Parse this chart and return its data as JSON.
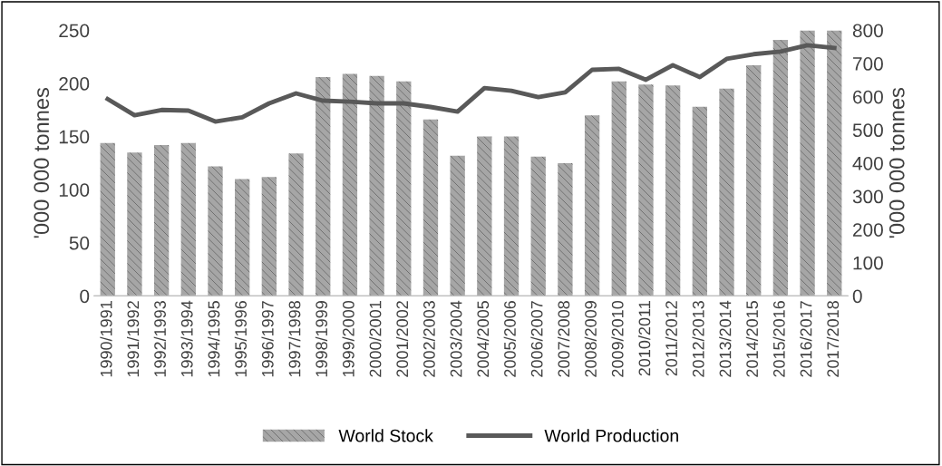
{
  "chart_data": {
    "type": "bar",
    "categories": [
      "1990/1991",
      "1991/1992",
      "1992/1993",
      "1993/1994",
      "1994/1995",
      "1995/1996",
      "1996/1997",
      "1997/1998",
      "1998/1999",
      "1999/2000",
      "2000/2001",
      "2001/2002",
      "2002/2003",
      "2003/2004",
      "2004/2005",
      "2005/2006",
      "2006/2007",
      "2007/2008",
      "2008/2009",
      "2009/2010",
      "2010/2011",
      "2011/2012",
      "2012/2013",
      "2013/2014",
      "2014/2015",
      "2015/2016",
      "2016/2017",
      "2017/2018"
    ],
    "series": [
      {
        "name": "World Stock",
        "color": "#a6a6a6",
        "values": [
          144,
          135,
          142,
          144,
          122,
          110,
          112,
          134,
          206,
          209,
          207,
          202,
          166,
          132,
          150,
          150,
          131,
          125,
          170,
          202,
          199,
          198,
          178,
          195,
          217,
          241,
          250,
          250
        ]
      },
      {
        "name": "World Production",
        "type": "line",
        "axis": "y2",
        "color": "#595959",
        "values": [
          593,
          544,
          560,
          558,
          525,
          538,
          580,
          610,
          588,
          585,
          580,
          580,
          569,
          555,
          626,
          618,
          599,
          613,
          681,
          684,
          651,
          695,
          659,
          714,
          728,
          736,
          755,
          747
        ]
      }
    ],
    "ylabel": "'000 000 tonnes",
    "y2label": "'000 000 tonnes",
    "ylim": [
      0,
      250
    ],
    "yticks": [
      0,
      50,
      100,
      150,
      200,
      250
    ],
    "y2lim": [
      0,
      800
    ],
    "y2ticks": [
      0,
      100,
      200,
      300,
      400,
      500,
      600,
      700,
      800
    ],
    "grid": false,
    "legend": "bottom",
    "marker": "none",
    "line_style": "solid"
  }
}
